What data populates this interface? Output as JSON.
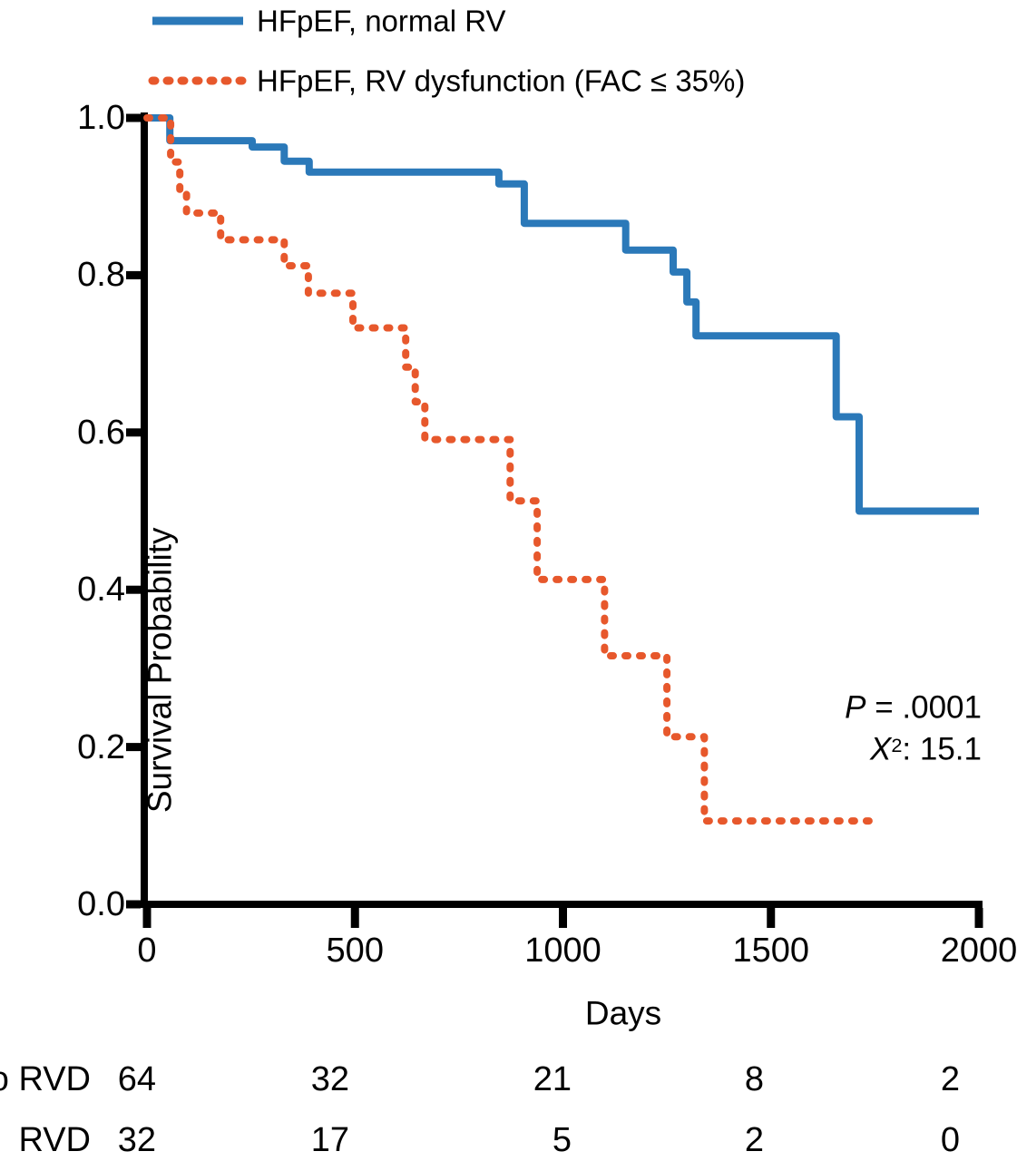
{
  "legend": {
    "items": [
      {
        "label": "HFpEF, normal RV",
        "color": "#2b79b9",
        "style": "solid"
      },
      {
        "label": "HFpEF, RV dysfunction (FAC ≤ 35%)",
        "color": "#e7582c",
        "style": "dashed"
      }
    ]
  },
  "annotation": {
    "p_var": "P",
    "p_rest": " = .0001",
    "chi_var": "X",
    "chi_sup": "2",
    "chi_rest": ": 15.1"
  },
  "chart_data": {
    "type": "line",
    "subtype": "kaplan_meier_step",
    "title": "",
    "xlabel": "Days",
    "ylabel": "Survival Probability",
    "xlim": [
      0,
      2000
    ],
    "ylim": [
      0,
      1
    ],
    "grid": false,
    "legend_position": "top-left",
    "x_ticks": [
      {
        "v": 0,
        "label": "0"
      },
      {
        "v": 500,
        "label": "500"
      },
      {
        "v": 1000,
        "label": "1000"
      },
      {
        "v": 1500,
        "label": "1500"
      },
      {
        "v": 2000,
        "label": "2000"
      }
    ],
    "y_ticks": [
      {
        "v": 1.0,
        "label": "1.0"
      },
      {
        "v": 0.8,
        "label": "0.8"
      },
      {
        "v": 0.6,
        "label": "0.6"
      },
      {
        "v": 0.4,
        "label": "0.4"
      },
      {
        "v": 0.2,
        "label": "0.2"
      },
      {
        "v": 0.0,
        "label": "0.0"
      }
    ],
    "annotations": [
      "P = .0001",
      "X²: 15.1"
    ],
    "series": [
      {
        "name": "HFpEF, normal RV",
        "color": "#2b79b9",
        "line_style": "solid",
        "end_day": 2000,
        "steps": [
          [
            0,
            1.0
          ],
          [
            55,
            0.971
          ],
          [
            253,
            0.963
          ],
          [
            330,
            0.945
          ],
          [
            390,
            0.931
          ],
          [
            846,
            0.916
          ],
          [
            907,
            0.866
          ],
          [
            1151,
            0.832
          ],
          [
            1265,
            0.804
          ],
          [
            1298,
            0.766
          ],
          [
            1320,
            0.723
          ],
          [
            1657,
            0.62
          ],
          [
            1712,
            0.5
          ]
        ]
      },
      {
        "name": "HFpEF, RV dysfunction (FAC ≤ 35%)",
        "color": "#e7582c",
        "line_style": "dashed",
        "end_day": 1750,
        "steps": [
          [
            0,
            1.0
          ],
          [
            57,
            0.944
          ],
          [
            79,
            0.906
          ],
          [
            95,
            0.879
          ],
          [
            177,
            0.845
          ],
          [
            330,
            0.812
          ],
          [
            388,
            0.777
          ],
          [
            495,
            0.733
          ],
          [
            622,
            0.683
          ],
          [
            645,
            0.639
          ],
          [
            668,
            0.591
          ],
          [
            873,
            0.513
          ],
          [
            938,
            0.413
          ],
          [
            1100,
            0.316
          ],
          [
            1250,
            0.213
          ],
          [
            1340,
            0.106
          ]
        ]
      }
    ]
  },
  "risk_table": {
    "rows": [
      {
        "label": "No RVD",
        "values": [
          "64",
          "32",
          "21",
          "8",
          "2"
        ]
      },
      {
        "label": "RVD",
        "values": [
          "32",
          "17",
          "5",
          "2",
          "0"
        ]
      }
    ]
  }
}
